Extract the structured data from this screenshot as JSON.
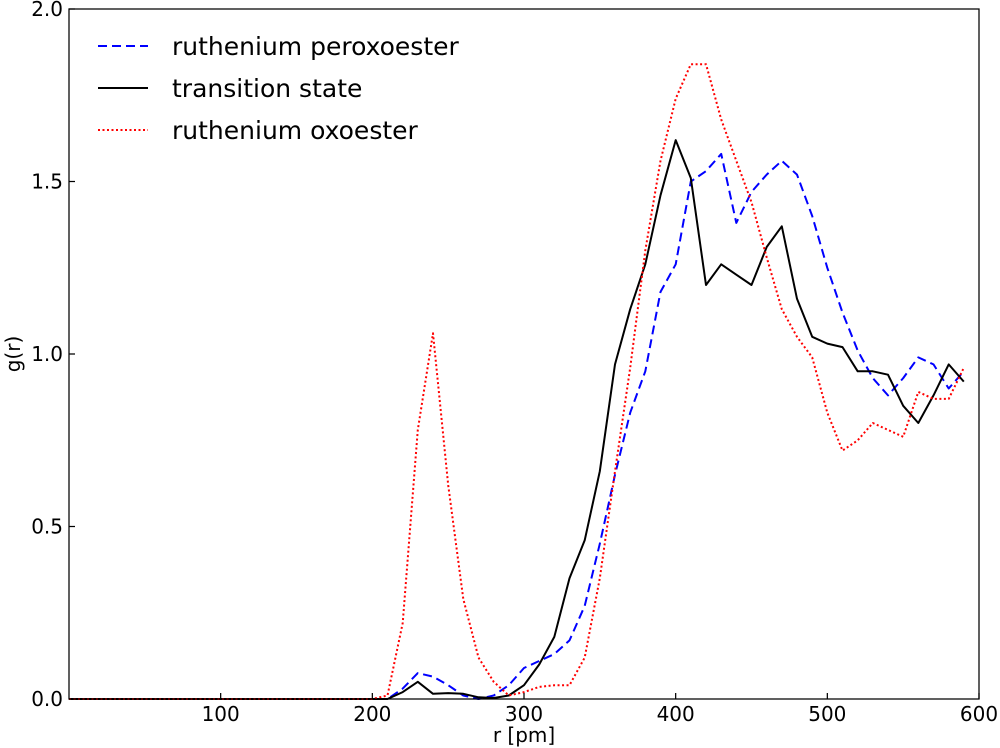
{
  "chart_data": {
    "type": "line",
    "xlabel": "r [pm]",
    "ylabel": "g(r)",
    "xlim": [
      0,
      600
    ],
    "ylim": [
      0,
      2.0
    ],
    "xticks": [
      100,
      200,
      300,
      400,
      500,
      600
    ],
    "yticks": [
      0.0,
      0.5,
      1.0,
      1.5,
      2.0
    ],
    "xtick_labels": [
      "100",
      "200",
      "300",
      "400",
      "500",
      "600"
    ],
    "ytick_labels": [
      "0.0",
      "0.5",
      "1.0",
      "1.5",
      "2.0"
    ],
    "grid": false,
    "legend_position": "top-left",
    "series": [
      {
        "name": "ruthenium peroxoester",
        "color": "#0000ff",
        "style": "dashed",
        "x": [
          0,
          200,
          210,
          220,
          230,
          240,
          250,
          260,
          270,
          280,
          290,
          300,
          310,
          320,
          330,
          340,
          350,
          360,
          370,
          380,
          390,
          400,
          410,
          420,
          430,
          440,
          450,
          460,
          470,
          480,
          490,
          500,
          510,
          520,
          530,
          540,
          550,
          560,
          570,
          580,
          590
        ],
        "y": [
          0,
          0,
          0,
          0.03,
          0.075,
          0.065,
          0.04,
          0.01,
          0.0,
          0.01,
          0.04,
          0.09,
          0.11,
          0.13,
          0.17,
          0.27,
          0.45,
          0.65,
          0.83,
          0.95,
          1.18,
          1.26,
          1.5,
          1.53,
          1.58,
          1.38,
          1.47,
          1.52,
          1.56,
          1.52,
          1.4,
          1.25,
          1.12,
          1.01,
          0.93,
          0.88,
          0.93,
          0.99,
          0.97,
          0.9,
          0.95
        ]
      },
      {
        "name": "transition state",
        "color": "#000000",
        "style": "solid",
        "x": [
          0,
          200,
          210,
          220,
          230,
          240,
          250,
          260,
          270,
          280,
          290,
          300,
          310,
          320,
          330,
          340,
          350,
          360,
          370,
          380,
          390,
          400,
          410,
          420,
          430,
          440,
          450,
          460,
          470,
          480,
          490,
          500,
          510,
          520,
          530,
          540,
          550,
          560,
          570,
          580,
          590
        ],
        "y": [
          0,
          0,
          0,
          0.02,
          0.05,
          0.015,
          0.017,
          0.015,
          0.005,
          0.003,
          0.01,
          0.04,
          0.1,
          0.18,
          0.35,
          0.46,
          0.66,
          0.97,
          1.13,
          1.26,
          1.46,
          1.62,
          1.51,
          1.2,
          1.26,
          1.23,
          1.2,
          1.31,
          1.37,
          1.16,
          1.05,
          1.03,
          1.02,
          0.95,
          0.95,
          0.94,
          0.85,
          0.8,
          0.88,
          0.97,
          0.92
        ]
      },
      {
        "name": "ruthenium oxoester",
        "color": "#ff0000",
        "style": "dotted",
        "x": [
          0,
          200,
          210,
          220,
          230,
          240,
          250,
          260,
          270,
          280,
          290,
          300,
          310,
          320,
          330,
          340,
          350,
          360,
          370,
          380,
          390,
          400,
          410,
          420,
          430,
          440,
          450,
          460,
          470,
          480,
          490,
          500,
          510,
          520,
          530,
          540,
          550,
          560,
          570,
          580,
          590
        ],
        "y": [
          0,
          0,
          0.01,
          0.22,
          0.78,
          1.06,
          0.62,
          0.29,
          0.12,
          0.05,
          0.01,
          0.02,
          0.035,
          0.04,
          0.04,
          0.12,
          0.35,
          0.66,
          0.96,
          1.3,
          1.56,
          1.74,
          1.84,
          1.84,
          1.68,
          1.56,
          1.44,
          1.28,
          1.13,
          1.05,
          0.99,
          0.83,
          0.72,
          0.75,
          0.8,
          0.78,
          0.76,
          0.89,
          0.87,
          0.87,
          0.96
        ]
      }
    ]
  }
}
